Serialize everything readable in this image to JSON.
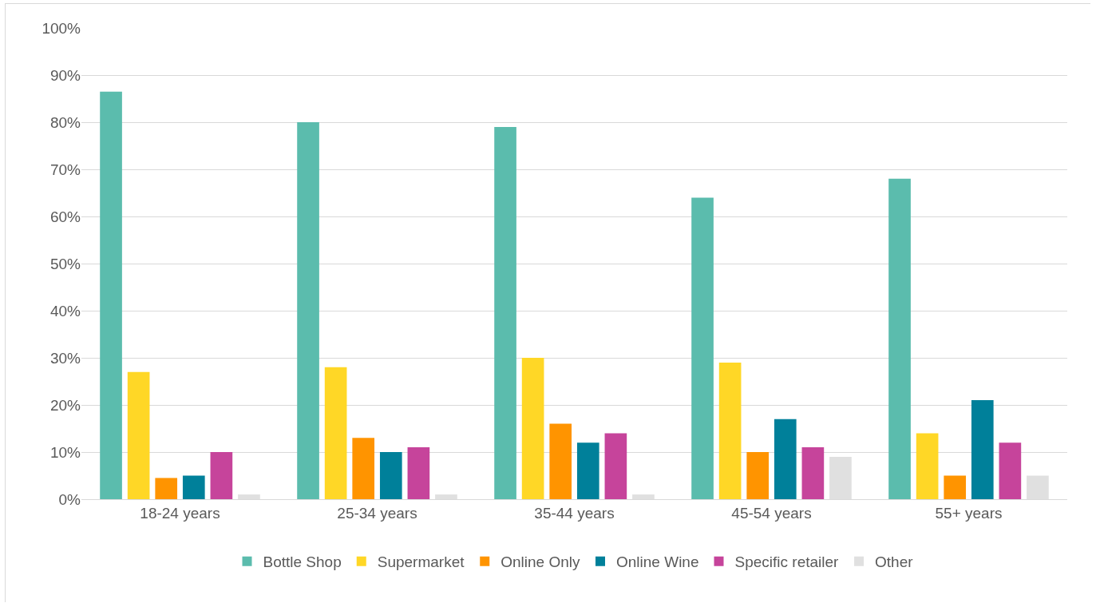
{
  "chart_data": {
    "type": "bar",
    "categories": [
      "18-24 years",
      "25-34 years",
      "35-44 years",
      "45-54 years",
      "55+ years"
    ],
    "series": [
      {
        "name": "Bottle Shop",
        "color": "#5bbcad",
        "values": [
          86.5,
          80,
          79,
          64,
          68
        ]
      },
      {
        "name": "Supermarket",
        "color": "#ffd726",
        "values": [
          27,
          28,
          30,
          29,
          14
        ]
      },
      {
        "name": "Online Only",
        "color": "#ff9400",
        "values": [
          4.5,
          13,
          16,
          10,
          5
        ]
      },
      {
        "name": "Online Wine",
        "color": "#00809a",
        "values": [
          5,
          10,
          12,
          17,
          21
        ]
      },
      {
        "name": "Specific retailer",
        "color": "#c6449b",
        "values": [
          10,
          11,
          14,
          11,
          12
        ]
      },
      {
        "name": "Other",
        "color": "#e0e0e0",
        "values": [
          1,
          1,
          1,
          9,
          5
        ]
      }
    ],
    "ylim": [
      0,
      100
    ],
    "yticks": [
      {
        "value": 0,
        "label": "0%"
      },
      {
        "value": 10,
        "label": "10%"
      },
      {
        "value": 20,
        "label": "20%"
      },
      {
        "value": 30,
        "label": "30%"
      },
      {
        "value": 40,
        "label": "40%"
      },
      {
        "value": 50,
        "label": "50%"
      },
      {
        "value": 60,
        "label": "60%"
      },
      {
        "value": 70,
        "label": "70%"
      },
      {
        "value": 80,
        "label": "80%"
      },
      {
        "value": 90,
        "label": "90%"
      },
      {
        "value": 100,
        "label": "100%"
      }
    ],
    "grid": "y",
    "legend": "bottom"
  }
}
